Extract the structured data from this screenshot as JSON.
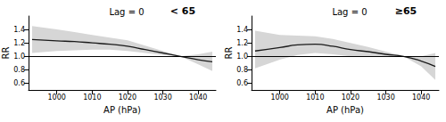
{
  "chart_data": [
    {
      "type": "line",
      "title": "Lag = 0",
      "subtitle": "< 65",
      "xlabel": "AP (hPa)",
      "ylabel": "RR",
      "x": [
        993,
        1000,
        1005,
        1010,
        1015,
        1020,
        1025,
        1030,
        1035,
        1040,
        1044
      ],
      "values": [
        1.25,
        1.23,
        1.22,
        1.2,
        1.18,
        1.15,
        1.1,
        1.05,
        1.0,
        0.95,
        0.92
      ],
      "color": "#1a1a1a",
      "ci_lower": [
        1.05,
        1.08,
        1.09,
        1.1,
        1.1,
        1.08,
        1.05,
        1.02,
        1.0,
        0.88,
        0.78
      ],
      "ci_upper": [
        1.45,
        1.4,
        1.36,
        1.32,
        1.28,
        1.24,
        1.16,
        1.08,
        1.0,
        1.03,
        1.07
      ],
      "ci_color": "#d6d6d6",
      "reference_line": 1,
      "xlim": [
        992,
        1045
      ],
      "xticks": [
        1000,
        1010,
        1020,
        1030,
        1040
      ],
      "ylim": [
        0.5,
        1.6
      ],
      "yticks": [
        0.6,
        0.8,
        {
          "value": 1,
          "label": "1.0"
        },
        1.2,
        1.4
      ],
      "grid": false
    },
    {
      "type": "line",
      "title": "Lag = 0",
      "subtitle": "≥65",
      "xlabel": "AP (hPa)",
      "ylabel": "RR",
      "x": [
        993,
        1000,
        1005,
        1010,
        1015,
        1020,
        1025,
        1030,
        1035,
        1040,
        1044
      ],
      "values": [
        1.08,
        1.13,
        1.17,
        1.18,
        1.15,
        1.1,
        1.07,
        1.03,
        1.0,
        0.93,
        0.85
      ],
      "color": "#1a1a1a",
      "ci_lower": [
        0.82,
        0.95,
        1.02,
        1.05,
        1.03,
        1.0,
        0.99,
        0.99,
        1.0,
        0.85,
        0.65
      ],
      "ci_upper": [
        1.38,
        1.32,
        1.31,
        1.3,
        1.26,
        1.2,
        1.14,
        1.07,
        1.0,
        1.0,
        1.05
      ],
      "ci_color": "#d6d6d6",
      "reference_line": 1,
      "xlim": [
        992,
        1045
      ],
      "xticks": [
        1000,
        1010,
        1020,
        1030,
        1040
      ],
      "ylim": [
        0.5,
        1.6
      ],
      "yticks": [
        0.6,
        0.8,
        {
          "value": 1,
          "label": "1.0"
        },
        1.2,
        1.4
      ],
      "grid": false
    }
  ]
}
